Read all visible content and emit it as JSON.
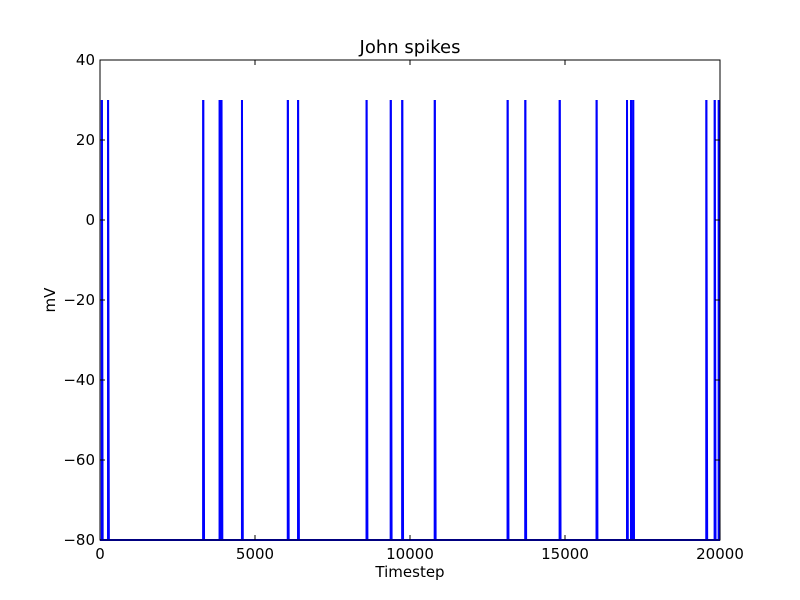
{
  "chart_data": {
    "type": "line",
    "title": "John spikes",
    "xlabel": "Timestep",
    "ylabel": "mV",
    "xlim": [
      0,
      20000
    ],
    "ylim": [
      -80,
      40
    ],
    "xticks": [
      0,
      5000,
      10000,
      15000,
      20000
    ],
    "xtick_labels": [
      "0",
      "5000",
      "10000",
      "15000",
      "20000"
    ],
    "yticks": [
      40,
      20,
      0,
      -20,
      -40,
      -60,
      -80
    ],
    "ytick_labels": [
      "40",
      "20",
      "0",
      "−20",
      "−40",
      "−60",
      "−80"
    ],
    "grid": false,
    "series": [
      {
        "color": "#0000ff",
        "baseline_mv": -80,
        "peak_mv": 30,
        "spike_times": [
          60,
          260,
          3330,
          3860,
          3920,
          4580,
          6060,
          6390,
          8600,
          9380,
          9750,
          10800,
          13150,
          13720,
          14830,
          16020,
          17000,
          17130,
          17200,
          19560,
          19830,
          19960
        ]
      }
    ]
  }
}
